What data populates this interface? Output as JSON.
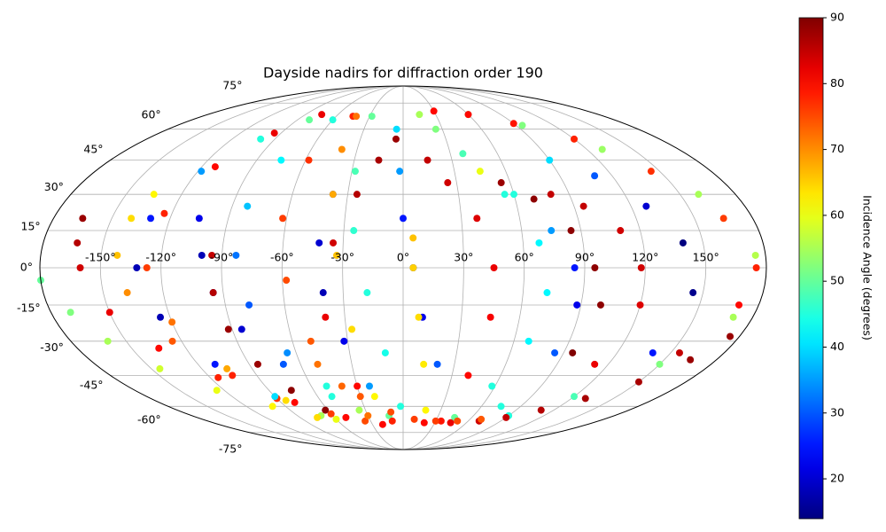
{
  "chart_data": {
    "type": "scatter",
    "projection": "mollweide",
    "title": "Dayside nadirs for diffraction order 190",
    "colorbar_label": "Incidence Angle (degrees)",
    "colormap": "jet",
    "grid": true,
    "clim": [
      13.95,
      90
    ],
    "cticks": [
      20,
      30,
      40,
      50,
      60,
      70,
      80,
      90
    ],
    "xlim": [
      -180,
      180
    ],
    "ylim": [
      -90,
      90
    ],
    "xticks": [
      {
        "value": -150,
        "label": "-150°"
      },
      {
        "value": -120,
        "label": "-120°"
      },
      {
        "value": -90,
        "label": "-90°"
      },
      {
        "value": -60,
        "label": "-60°"
      },
      {
        "value": -30,
        "label": "-30°"
      },
      {
        "value": 0,
        "label": "0°"
      },
      {
        "value": 30,
        "label": "30°"
      },
      {
        "value": 60,
        "label": "60°"
      },
      {
        "value": 90,
        "label": "90°"
      },
      {
        "value": 120,
        "label": "120°"
      },
      {
        "value": 150,
        "label": "150°"
      }
    ],
    "yticks": [
      {
        "value": -75,
        "label": "-75°"
      },
      {
        "value": -60,
        "label": "-60°"
      },
      {
        "value": -45,
        "label": "-45°"
      },
      {
        "value": -30,
        "label": "-30°"
      },
      {
        "value": -15,
        "label": "-15°"
      },
      {
        "value": 0,
        "label": "0°"
      },
      {
        "value": 15,
        "label": "15°"
      },
      {
        "value": 30,
        "label": "30°"
      },
      {
        "value": 45,
        "label": "45°"
      },
      {
        "value": 60,
        "label": "60°"
      },
      {
        "value": 75,
        "label": "75°"
      }
    ],
    "series": [
      {
        "x": [
          -165,
          -163,
          -160,
          -150,
          -135,
          -115,
          -90,
          -60,
          -35
        ],
        "y": [
          20,
          10,
          0,
          -18,
          -33,
          -46,
          -56,
          -64,
          -68
        ],
        "values": [
          88,
          86,
          84,
          82,
          80,
          78,
          77,
          76,
          75
        ]
      },
      {
        "x": [
          -80,
          -100,
          -118,
          -130,
          -132,
          -125,
          -110,
          -90,
          -70
        ],
        "y": [
          65,
          55,
          40,
          20,
          0,
          -20,
          -40,
          -55,
          -65
        ],
        "values": [
          50,
          45,
          35,
          25,
          18,
          18,
          25,
          40,
          55
        ]
      },
      {
        "x": [
          -75,
          -95,
          -112,
          -124,
          -127,
          -120,
          -105,
          -85,
          -60
        ],
        "y": [
          68,
          58,
          42,
          22,
          0,
          -22,
          -42,
          -57,
          -67
        ],
        "values": [
          82,
          82,
          80,
          78,
          76,
          72,
          68,
          64,
          60
        ]
      },
      {
        "x": [
          -135,
          -140,
          -142,
          -138,
          -125,
          -105,
          -80,
          -50,
          -20
        ],
        "y": [
          30,
          20,
          5,
          -10,
          -30,
          -45,
          -58,
          -66,
          -70
        ],
        "values": [
          62,
          64,
          66,
          70,
          74,
          78,
          80,
          80,
          80
        ]
      },
      {
        "x": [
          -105,
          -100,
          -95,
          -85,
          -70,
          -50
        ],
        "y": [
          20,
          5,
          -10,
          -25,
          -40,
          -55
        ],
        "values": [
          22,
          18,
          16,
          20,
          30,
          45
        ]
      },
      {
        "x": [
          -60,
          -75,
          -82,
          -83,
          -78,
          -65,
          -50,
          -35
        ],
        "y": [
          65,
          45,
          25,
          5,
          -15,
          -35,
          -50,
          -62
        ],
        "values": [
          45,
          42,
          38,
          32,
          30,
          34,
          45,
          55
        ]
      },
      {
        "x": [
          -95,
          -95,
          -92,
          -85,
          -75,
          -62
        ],
        "y": [
          5,
          -10,
          -25,
          -40,
          -52,
          -62
        ],
        "values": [
          85,
          86,
          88,
          88,
          89,
          89
        ]
      },
      {
        "x": [
          -45,
          -58,
          -62,
          -58,
          -50,
          -40,
          -30
        ],
        "y": [
          67,
          45,
          20,
          -5,
          -30,
          -50,
          -65
        ],
        "values": [
          78,
          77,
          76,
          75,
          74,
          73,
          72
        ]
      },
      {
        "x": [
          -38,
          -42,
          -40,
          -32,
          -22,
          -12
        ],
        "y": [
          30,
          10,
          -10,
          -30,
          -50,
          -65
        ],
        "values": [
          25,
          20,
          18,
          22,
          35,
          50
        ]
      },
      {
        "x": [
          -28,
          -28,
          -25,
          -18,
          -10,
          -2
        ],
        "y": [
          67,
          40,
          15,
          -10,
          -35,
          -60
        ],
        "values": [
          50,
          48,
          46,
          45,
          44,
          45
        ]
      },
      {
        "x": [
          -42,
          -40,
          -38,
          -33,
          -27,
          -20
        ],
        "y": [
          67,
          50,
          30,
          5,
          -25,
          -55
        ],
        "values": [
          72,
          70,
          68,
          66,
          64,
          62
        ]
      },
      {
        "x": [
          -5,
          -2,
          0,
          5,
          10,
          20
        ],
        "y": [
          60,
          40,
          20,
          0,
          -20,
          -40
        ],
        "values": [
          40,
          35,
          25,
          18,
          22,
          30
        ]
      },
      {
        "x": [
          -5,
          -15,
          -25,
          -35,
          -40,
          -30,
          -10
        ],
        "y": [
          55,
          45,
          30,
          10,
          -20,
          -50,
          -68
        ],
        "values": [
          88,
          87,
          86,
          84,
          82,
          80,
          78
        ]
      },
      {
        "x": [
          15,
          25,
          38,
          45,
          45,
          40,
          35
        ],
        "y": [
          45,
          35,
          20,
          0,
          -20,
          -45,
          -68
        ],
        "values": [
          85,
          84,
          83,
          82,
          81,
          80,
          79
        ]
      },
      {
        "x": [
          5,
          5,
          8,
          12,
          18
        ],
        "y": [
          12,
          0,
          -20,
          -40,
          -62
        ],
        "values": [
          66,
          65,
          64,
          63,
          62
        ]
      },
      {
        "x": [
          15,
          25,
          38,
          55,
          68,
          72,
          68,
          58,
          45
        ],
        "y": [
          68,
          60,
          48,
          30,
          10,
          -10,
          -30,
          -50,
          -66
        ],
        "values": [
          55,
          52,
          48,
          45,
          42,
          42,
          42,
          45,
          50
        ]
      },
      {
        "x": [
          45,
          60,
          75,
          85,
          88,
          85,
          75
        ],
        "y": [
          40,
          30,
          15,
          0,
          -15,
          -35,
          -60
        ],
        "values": [
          60,
          45,
          35,
          25,
          22,
          30,
          45
        ]
      },
      {
        "x": [
          55,
          70,
          85,
          95,
          100,
          95
        ],
        "y": [
          35,
          28,
          15,
          0,
          -15,
          -35
        ],
        "values": [
          88,
          89,
          89,
          89,
          89,
          90
        ]
      },
      {
        "x": [
          80,
          95,
          110,
          118,
          120,
          112
        ],
        "y": [
          30,
          25,
          15,
          0,
          -15,
          -40
        ],
        "values": [
          85,
          85,
          84,
          84,
          83,
          82
        ]
      },
      {
        "x": [
          90,
          110,
          128,
          140,
          145,
          140
        ],
        "y": [
          45,
          38,
          25,
          10,
          -10,
          -35
        ],
        "values": [
          40,
          30,
          20,
          14,
          15,
          25
        ]
      },
      {
        "x": [
          60,
          95,
          130,
          160,
          175,
          170,
          150,
          120,
          90
        ],
        "y": [
          68,
          62,
          50,
          30,
          5,
          -20,
          -40,
          -55,
          -65
        ],
        "values": [
          50,
          52,
          54,
          55,
          56,
          55,
          52,
          48,
          45
        ]
      },
      {
        "x": [
          30,
          60,
          90,
          120,
          145,
          165,
          175,
          170,
          155
        ],
        "y": [
          70,
          68,
          63,
          55,
          40,
          20,
          0,
          -15,
          -35
        ],
        "values": [
          80,
          80,
          79,
          78,
          77,
          76,
          78,
          80,
          85
        ]
      },
      {
        "x": [
          175,
          165,
          150,
          130,
          110,
          90,
          70,
          45,
          20
        ],
        "y": [
          -28,
          -38,
          -48,
          -56,
          -62,
          -66,
          -68,
          -69,
          -69
        ],
        "values": [
          88,
          88,
          87,
          87,
          86,
          85,
          84,
          82,
          80
        ]
      },
      {
        "x": [
          -180,
          -170,
          -160,
          -145,
          -125,
          -100,
          -75
        ],
        "y": [
          -5,
          -18,
          -30,
          -42,
          -52,
          -60,
          -66
        ],
        "values": [
          50,
          52,
          55,
          58,
          60,
          62,
          64
        ]
      },
      {
        "x": [
          -50,
          -30,
          -10,
          10,
          30,
          50,
          70
        ],
        "y": [
          -40,
          -55,
          -63,
          -67,
          -68,
          -68,
          -67
        ],
        "values": [
          72,
          74,
          75,
          76,
          76,
          75,
          74
        ]
      }
    ]
  }
}
